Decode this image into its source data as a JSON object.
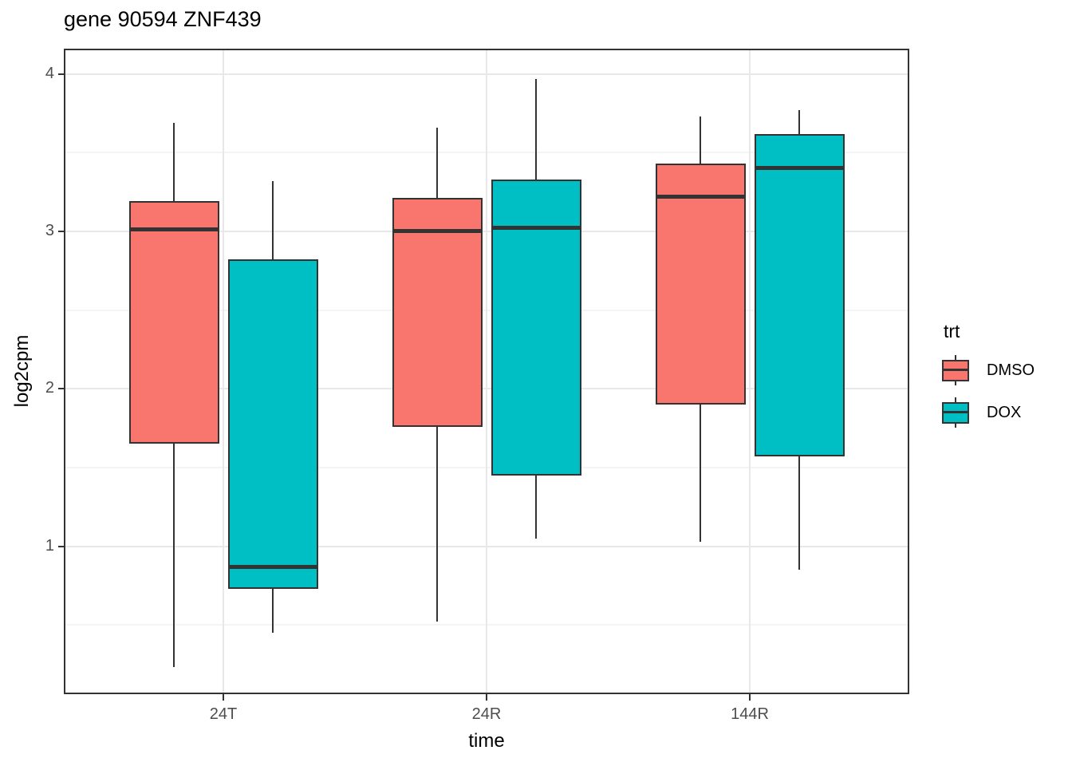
{
  "title": "gene 90594 ZNF439",
  "axes": {
    "x_title": "time",
    "y_title": "log2cpm"
  },
  "legend": {
    "title": "trt",
    "entries": [
      {
        "label": "DMSO",
        "color": "#F8766D"
      },
      {
        "label": "DOX",
        "color": "#00BFC4"
      }
    ]
  },
  "colors": {
    "dmso_fill": "#F8766D",
    "dox_fill": "#00BFC4",
    "box_stroke": "#333333",
    "panel_border": "#333333",
    "grid_major": "#E8E8E8",
    "grid_minor": "#F4F4F4",
    "tick_label": "#4D4D4D",
    "background": "#FFFFFF"
  },
  "chart_data": {
    "type": "boxplot",
    "title": "gene 90594 ZNF439",
    "xlabel": "time",
    "ylabel": "log2cpm",
    "categories": [
      "24T",
      "24R",
      "144R"
    ],
    "y_ticks": [
      1,
      2,
      3,
      4
    ],
    "ylim": [
      0.07,
      4.15
    ],
    "y_minor_gridlines": [
      0.5,
      1.5,
      2.5,
      3.5
    ],
    "grid": "major and minor horizontal, major vertical at categories",
    "legend_position": "right",
    "legend_title": "trt",
    "series": [
      {
        "name": "DMSO",
        "color": "#F8766D",
        "boxes": [
          {
            "category": "24T",
            "whisker_low": 0.23,
            "q1": 1.65,
            "median": 3.01,
            "q3": 3.19,
            "whisker_high": 3.69
          },
          {
            "category": "24R",
            "whisker_low": 0.52,
            "q1": 1.76,
            "median": 3.0,
            "q3": 3.21,
            "whisker_high": 3.66
          },
          {
            "category": "144R",
            "whisker_low": 1.03,
            "q1": 1.9,
            "median": 3.22,
            "q3": 3.43,
            "whisker_high": 3.73
          }
        ]
      },
      {
        "name": "DOX",
        "color": "#00BFC4",
        "boxes": [
          {
            "category": "24T",
            "whisker_low": 0.45,
            "q1": 0.73,
            "median": 0.87,
            "q3": 2.82,
            "whisker_high": 3.32
          },
          {
            "category": "24R",
            "whisker_low": 1.05,
            "q1": 1.45,
            "median": 3.02,
            "q3": 3.33,
            "whisker_high": 3.97
          },
          {
            "category": "144R",
            "whisker_low": 0.85,
            "q1": 1.57,
            "median": 3.4,
            "q3": 3.62,
            "whisker_high": 3.77
          }
        ]
      }
    ]
  }
}
